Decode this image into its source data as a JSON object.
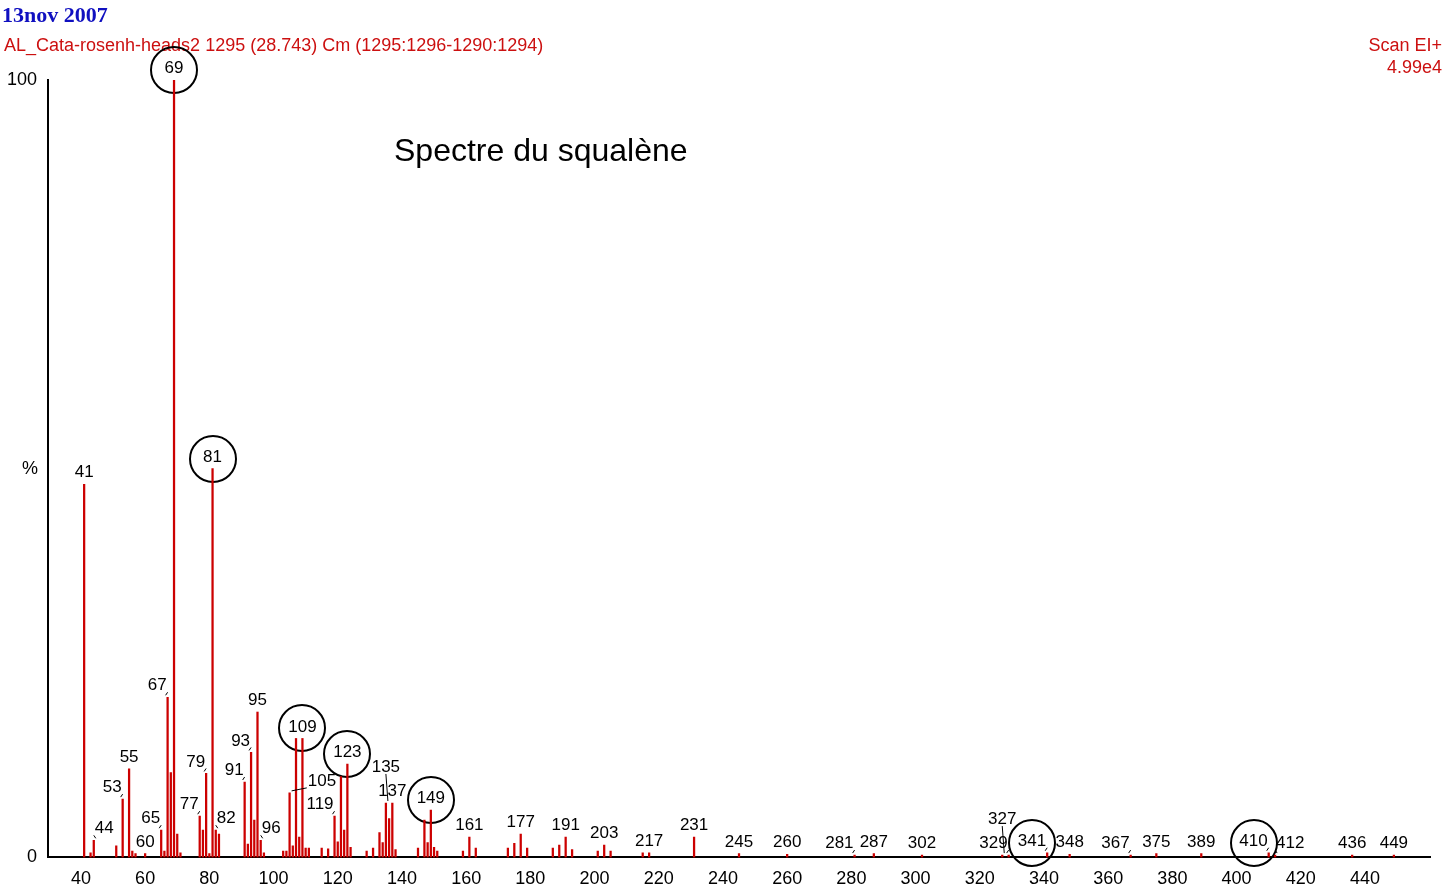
{
  "chart_data": {
    "type": "bar",
    "title": "13nov 2007",
    "subtitle": "AL_Cata-rosenh-heads2 1295 (28.743) Cm (1295:1296-1290:1294)",
    "ylabel": "%",
    "x": [
      41,
      43,
      44,
      51,
      53,
      55,
      56,
      57,
      60,
      65,
      66,
      67,
      68,
      69,
      70,
      71,
      77,
      78,
      79,
      80,
      81,
      82,
      83,
      91,
      92,
      93,
      94,
      95,
      96,
      97,
      103,
      104,
      105,
      106,
      107,
      108,
      109,
      110,
      111,
      115,
      117,
      119,
      120,
      121,
      122,
      123,
      124,
      129,
      131,
      133,
      134,
      135,
      136,
      137,
      138,
      145,
      147,
      148,
      149,
      150,
      151,
      159,
      161,
      163,
      173,
      175,
      177,
      179,
      187,
      189,
      191,
      193,
      201,
      203,
      205,
      215,
      217,
      231,
      245,
      260,
      281,
      287,
      302,
      327,
      329,
      341,
      348,
      367,
      375,
      389,
      410,
      412,
      436,
      449
    ],
    "values": [
      48,
      0.6,
      2.2,
      1.5,
      7.5,
      11.4,
      0.8,
      0.5,
      0.5,
      3.5,
      0.8,
      20.6,
      10.9,
      100,
      3,
      0.6,
      5.3,
      3.5,
      10.8,
      0.5,
      50,
      3.5,
      3,
      9.7,
      1.7,
      13.5,
      4.8,
      18.7,
      2.2,
      0.6,
      0.8,
      0.8,
      8.3,
      1.5,
      15.3,
      2.6,
      15.3,
      1.2,
      1.2,
      1.2,
      1.1,
      5.3,
      2,
      10.4,
      3.5,
      12,
      1.3,
      0.8,
      1.2,
      3.2,
      1.9,
      7,
      5,
      7,
      1,
      1.2,
      4.8,
      1.9,
      6.1,
      1.3,
      0.8,
      0.8,
      2.6,
      1.2,
      1.2,
      1.8,
      3,
      1.2,
      1.2,
      1.6,
      2.6,
      1,
      0.8,
      1.6,
      0.8,
      0.6,
      0.6,
      2.6,
      0.5,
      0.4,
      0.3,
      0.5,
      0.3,
      0.3,
      0.3,
      0.6,
      0.4,
      0.3,
      0.5,
      0.5,
      0.6,
      0.3,
      0.3,
      0.3
    ],
    "color": "#cc0000",
    "xlim": [
      40,
      450
    ],
    "ylim": [
      0,
      100
    ],
    "xticks": [
      40,
      60,
      80,
      100,
      120,
      140,
      160,
      180,
      200,
      220,
      240,
      260,
      280,
      300,
      320,
      340,
      360,
      380,
      400,
      420,
      440
    ],
    "yticks": [
      0,
      100
    ],
    "annotations": [
      "Scan EI+",
      "4.99e4",
      "Spectre du squalène",
      {
        "text": "41",
        "x": 41,
        "y": 48
      },
      {
        "text": "44",
        "x": 44,
        "y": 2.2
      },
      {
        "text": "53",
        "x": 53,
        "y": 7.5
      },
      {
        "text": "55",
        "x": 55,
        "y": 11.4
      },
      {
        "text": "60",
        "x": 60,
        "y": 0.5
      },
      {
        "text": "65",
        "x": 65,
        "y": 3.5
      },
      {
        "text": "67",
        "x": 67,
        "y": 20.6
      },
      {
        "text": "69",
        "x": 69,
        "y": 100
      },
      {
        "text": "77",
        "x": 77,
        "y": 5.3
      },
      {
        "text": "79",
        "x": 79,
        "y": 10.8
      },
      {
        "text": "81",
        "x": 81,
        "y": 50
      },
      {
        "text": "82",
        "x": 82,
        "y": 3.5
      },
      {
        "text": "91",
        "x": 91,
        "y": 9.7
      },
      {
        "text": "93",
        "x": 93,
        "y": 13.5
      },
      {
        "text": "95",
        "x": 95,
        "y": 18.7
      },
      {
        "text": "96",
        "x": 96,
        "y": 2.2
      },
      {
        "text": "105",
        "x": 105,
        "y": 8.3
      },
      {
        "text": "109",
        "x": 109,
        "y": 15.3
      },
      {
        "text": "119",
        "x": 119,
        "y": 5.3
      },
      {
        "text": "123",
        "x": 123,
        "y": 12
      },
      {
        "text": "135",
        "x": 135,
        "y": 7
      },
      {
        "text": "137",
        "x": 137,
        "y": 7
      },
      {
        "text": "149",
        "x": 149,
        "y": 6.1
      },
      {
        "text": "161",
        "x": 161,
        "y": 2.6
      },
      {
        "text": "177",
        "x": 177,
        "y": 3
      },
      {
        "text": "191",
        "x": 191,
        "y": 2.6
      },
      {
        "text": "203",
        "x": 203,
        "y": 1.6
      },
      {
        "text": "217",
        "x": 217,
        "y": 0.6
      },
      {
        "text": "231",
        "x": 231,
        "y": 2.6
      },
      {
        "text": "245",
        "x": 245,
        "y": 0.5
      },
      {
        "text": "260",
        "x": 260,
        "y": 0.4
      },
      {
        "text": "281",
        "x": 281,
        "y": 0.3
      },
      {
        "text": "287",
        "x": 287,
        "y": 0.5
      },
      {
        "text": "302",
        "x": 302,
        "y": 0.3
      },
      {
        "text": "327",
        "x": 327,
        "y": 0.3
      },
      {
        "text": "329",
        "x": 329,
        "y": 0.3
      },
      {
        "text": "341",
        "x": 341,
        "y": 0.6
      },
      {
        "text": "348",
        "x": 348,
        "y": 0.4
      },
      {
        "text": "367",
        "x": 367,
        "y": 0.3
      },
      {
        "text": "375",
        "x": 375,
        "y": 0.5
      },
      {
        "text": "389",
        "x": 389,
        "y": 0.5
      },
      {
        "text": "410",
        "x": 410,
        "y": 0.6
      },
      {
        "text": "412",
        "x": 412,
        "y": 0.3
      },
      {
        "text": "436",
        "x": 436,
        "y": 0.3
      },
      {
        "text": "449",
        "x": 449,
        "y": 0.3
      }
    ]
  }
}
